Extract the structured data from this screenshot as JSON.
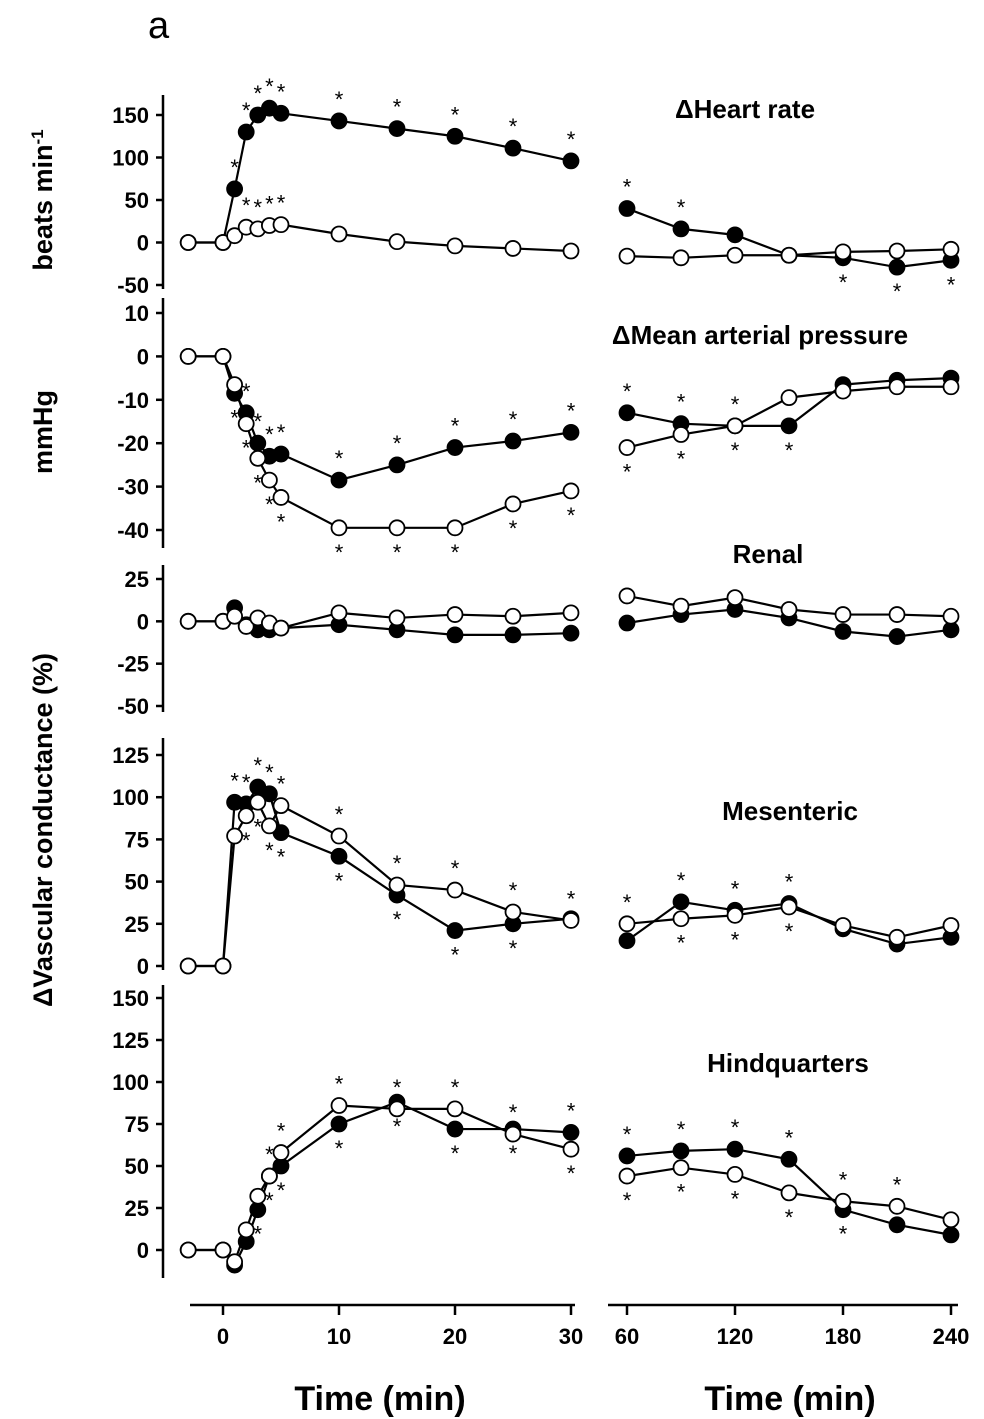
{
  "figure_letter": "a",
  "x_label": "Time (min)",
  "x_label_right": "Time (min)",
  "chart_data": [
    {
      "type": "line",
      "title": "ΔHeart rate",
      "ylabel": "beats min",
      "ylabel_sup": "-1",
      "ylim": [
        -50,
        150
      ],
      "yticks": [
        -50,
        0,
        50,
        100,
        150
      ],
      "x": [
        -3,
        0,
        1,
        2,
        3,
        4,
        5,
        10,
        15,
        20,
        25,
        30,
        60,
        90,
        120,
        150,
        180,
        210,
        240
      ],
      "series": [
        {
          "fill": "#000000",
          "values": [
            0,
            0,
            63,
            130,
            150,
            158,
            152,
            143,
            134,
            125,
            111,
            96,
            40,
            16,
            9,
            -15,
            -18,
            -29,
            -21
          ],
          "sig": [
            "",
            "",
            "a",
            "a",
            "a",
            "a",
            "a",
            "a",
            "a",
            "a",
            "a",
            "a",
            "a",
            "a",
            "",
            "",
            "b",
            "b",
            "b"
          ]
        },
        {
          "fill": "#ffffff",
          "values": [
            0,
            0,
            8,
            18,
            16,
            20,
            21,
            10,
            1,
            -4,
            -7,
            -10,
            -16,
            -18,
            -15,
            -15,
            -11,
            -10,
            -8
          ],
          "sig": [
            "",
            "",
            "",
            "a",
            "a",
            "a",
            "a",
            "",
            "",
            "",
            "",
            "",
            "",
            "",
            "",
            "",
            "",
            "",
            ""
          ]
        }
      ]
    },
    {
      "type": "line",
      "title": "ΔMean arterial pressure",
      "ylabel": "mmHg",
      "ylim": [
        -40,
        10
      ],
      "yticks": [
        -40,
        -30,
        -20,
        -10,
        0,
        10
      ],
      "x": [
        -3,
        0,
        1,
        2,
        3,
        4,
        5,
        10,
        15,
        20,
        25,
        30,
        60,
        90,
        120,
        150,
        180,
        210,
        240
      ],
      "series": [
        {
          "fill": "#000000",
          "values": [
            0,
            0,
            -8.5,
            -13,
            -20,
            -23,
            -22.5,
            -28.5,
            -25,
            -21,
            -19.5,
            -17.5,
            -13,
            -15.5,
            -16,
            -16,
            -6.5,
            -5.5,
            -5
          ],
          "sig": [
            "",
            "",
            "b",
            "a",
            "a",
            "a",
            "a",
            "a",
            "a",
            "a",
            "a",
            "a",
            "a",
            "a",
            "a",
            "b",
            "",
            "",
            ""
          ]
        },
        {
          "fill": "#ffffff",
          "values": [
            0,
            0,
            -6.5,
            -15.5,
            -23.5,
            -28.5,
            -32.5,
            -39.5,
            -39.5,
            -39.5,
            -34,
            -31,
            -21,
            -18,
            -16,
            -9.5,
            -8,
            -7,
            -7
          ],
          "sig": [
            "",
            "",
            "",
            "b",
            "b",
            "b",
            "b",
            "b",
            "b",
            "b",
            "b",
            "b",
            "b",
            "b",
            "b",
            "",
            "",
            "",
            ""
          ]
        }
      ]
    },
    {
      "type": "line",
      "title": "Renal",
      "ylim": [
        -50,
        25
      ],
      "yticks": [
        -50,
        -25,
        0,
        25
      ],
      "x": [
        -3,
        0,
        1,
        2,
        3,
        4,
        5,
        10,
        15,
        20,
        25,
        30,
        60,
        90,
        120,
        150,
        180,
        210,
        240
      ],
      "series": [
        {
          "fill": "#000000",
          "values": [
            0,
            0,
            8,
            -2,
            -5,
            -5,
            -4,
            -2,
            -5,
            -8,
            -8,
            -7,
            -1,
            4,
            7,
            2,
            -6,
            -9,
            -5
          ],
          "sig": []
        },
        {
          "fill": "#ffffff",
          "values": [
            0,
            0,
            3,
            -3,
            2,
            -1,
            -4,
            5,
            2,
            4,
            3,
            5,
            15,
            9,
            14,
            7,
            4,
            4,
            3
          ],
          "sig": []
        }
      ]
    },
    {
      "type": "line",
      "title": "Mesenteric",
      "ylabel": "ΔVascular conductance (%)",
      "ylim": [
        0,
        125
      ],
      "yticks": [
        0,
        25,
        50,
        75,
        100,
        125
      ],
      "x": [
        -3,
        0,
        1,
        2,
        3,
        4,
        5,
        10,
        15,
        20,
        25,
        30,
        60,
        90,
        120,
        150,
        180,
        210,
        240
      ],
      "series": [
        {
          "fill": "#000000",
          "values": [
            0,
            0,
            97,
            96,
            106,
            102,
            79,
            65,
            42,
            21,
            25,
            28,
            15,
            38,
            33,
            37,
            22,
            13,
            17
          ],
          "sig": [
            "",
            "",
            "a",
            "a",
            "a",
            "a",
            "b",
            "b",
            "b",
            "b",
            "b",
            "",
            "",
            "a",
            "a",
            "a",
            "",
            "",
            ""
          ]
        },
        {
          "fill": "#ffffff",
          "values": [
            0,
            0,
            77,
            89,
            97,
            83,
            95,
            77,
            48,
            45,
            32,
            27,
            25,
            28,
            30,
            35,
            24,
            17,
            24
          ],
          "sig": [
            "",
            "",
            "",
            "b",
            "b",
            "b",
            "a",
            "a",
            "a",
            "a",
            "a",
            "a",
            "a",
            "b",
            "b",
            "b",
            "",
            "",
            ""
          ]
        }
      ]
    },
    {
      "type": "line",
      "title": "Hindquarters",
      "ylim": [
        0,
        150
      ],
      "yticks": [
        0,
        25,
        50,
        75,
        100,
        125,
        150
      ],
      "x": [
        -3,
        0,
        1,
        2,
        3,
        4,
        5,
        10,
        15,
        20,
        25,
        30,
        60,
        90,
        120,
        150,
        180,
        210,
        240
      ],
      "series": [
        {
          "fill": "#000000",
          "values": [
            0,
            0,
            -9,
            5,
            24,
            44,
            50,
            75,
            88,
            72,
            72,
            70,
            56,
            59,
            60,
            54,
            24,
            15,
            9
          ],
          "sig": [
            "",
            "",
            "",
            "",
            "b",
            "b",
            "b",
            "b",
            "b",
            "b",
            "b",
            "a",
            "a",
            "a",
            "a",
            "a",
            "b",
            "",
            ""
          ]
        },
        {
          "fill": "#ffffff",
          "values": [
            0,
            0,
            -7,
            12,
            32,
            44,
            58,
            86,
            84,
            84,
            69,
            60,
            44,
            49,
            45,
            34,
            29,
            26,
            18
          ],
          "sig": [
            "",
            "",
            "",
            "",
            "",
            "a",
            "a",
            "a",
            "a",
            "a",
            "a",
            "b",
            "b",
            "b",
            "b",
            "b",
            "a",
            "a",
            ""
          ]
        }
      ]
    }
  ],
  "x_left_ticks": [
    0,
    10,
    20,
    30
  ],
  "x_right_ticks": [
    60,
    120,
    180,
    240
  ],
  "star_glyph": "*"
}
